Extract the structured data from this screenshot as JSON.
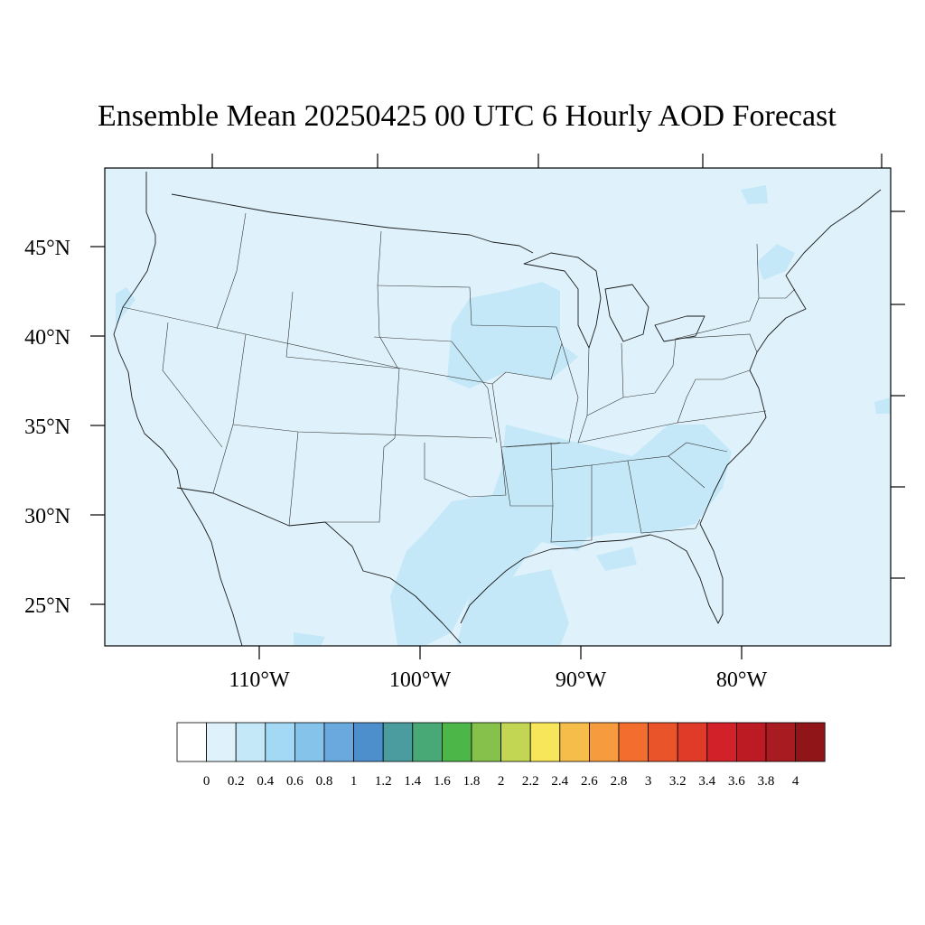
{
  "title": "Ensemble Mean 20250425 00 UTC 6 Hourly AOD Forecast",
  "map": {
    "region": "Contiguous United States",
    "background_fill": "#dff2fb",
    "enhanced_fill": "#c4e8f8",
    "lat_labels": [
      "45°N",
      "40°N",
      "35°N",
      "30°N",
      "25°N"
    ],
    "lon_labels": [
      "110°W",
      "100°W",
      "90°W",
      "80°W"
    ]
  },
  "colorbar": {
    "levels": [
      "0",
      "0.2",
      "0.4",
      "0.6",
      "0.8",
      "1",
      "1.2",
      "1.4",
      "1.6",
      "1.8",
      "2",
      "2.2",
      "2.4",
      "2.6",
      "2.8",
      "3",
      "3.2",
      "3.4",
      "3.6",
      "3.8",
      "4"
    ],
    "colors": [
      "#ffffff",
      "#dff2fb",
      "#c4e8f8",
      "#a3d9f4",
      "#85c3ea",
      "#6aa9de",
      "#4c8fcc",
      "#4a9c9e",
      "#48a876",
      "#4db649",
      "#86c14b",
      "#c3d654",
      "#f7e65a",
      "#f6bd4a",
      "#f69b3e",
      "#f36d2f",
      "#e9542a",
      "#e03b28",
      "#d22128",
      "#bd1b24",
      "#a71b21",
      "#8f1518"
    ]
  }
}
